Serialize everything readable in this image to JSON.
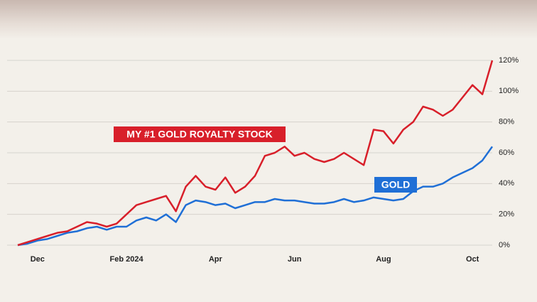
{
  "chart_data": {
    "type": "line",
    "categories": [
      null,
      null,
      "Dec",
      null,
      null,
      null,
      null,
      null,
      null,
      null,
      null,
      "Feb 2024",
      null,
      null,
      null,
      null,
      null,
      null,
      null,
      null,
      "Apr",
      null,
      null,
      null,
      null,
      null,
      null,
      null,
      "Jun",
      null,
      null,
      null,
      null,
      null,
      null,
      null,
      null,
      "Aug",
      null,
      null,
      null,
      null,
      null,
      null,
      null,
      null,
      "Oct",
      null,
      null
    ],
    "series": [
      {
        "name": "MY #1 GOLD ROYALTY STOCK",
        "color": "#d81f2a",
        "values": [
          0,
          2,
          4,
          6,
          8,
          9,
          12,
          15,
          14,
          12,
          14,
          20,
          26,
          28,
          30,
          32,
          22,
          38,
          45,
          38,
          36,
          44,
          34,
          38,
          45,
          58,
          60,
          64,
          58,
          60,
          56,
          54,
          56,
          60,
          56,
          52,
          75,
          74,
          66,
          75,
          80,
          90,
          88,
          84,
          88,
          96,
          104,
          98,
          120
        ]
      },
      {
        "name": "GOLD",
        "color": "#1f6fd6",
        "values": [
          0,
          1,
          3,
          4,
          6,
          8,
          9,
          11,
          12,
          10,
          12,
          12,
          16,
          18,
          16,
          20,
          15,
          26,
          29,
          28,
          26,
          27,
          24,
          26,
          28,
          28,
          30,
          29,
          29,
          28,
          27,
          27,
          28,
          30,
          28,
          29,
          31,
          30,
          29,
          30,
          35,
          38,
          38,
          40,
          44,
          47,
          50,
          55,
          64
        ]
      }
    ],
    "ylim": [
      0,
      120
    ],
    "yticks": [
      {
        "value": 0,
        "label": "0%"
      },
      {
        "value": 20,
        "label": "20%"
      },
      {
        "value": 40,
        "label": "40%"
      },
      {
        "value": 60,
        "label": "60%"
      },
      {
        "value": 80,
        "label": "80%"
      },
      {
        "value": 100,
        "label": "100%"
      },
      {
        "value": 120,
        "label": "120%"
      }
    ],
    "grid": true
  }
}
